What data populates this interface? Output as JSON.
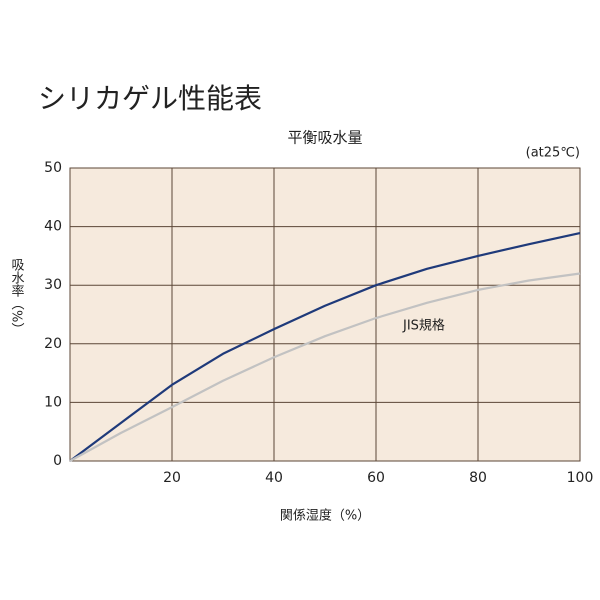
{
  "chart_data": {
    "type": "line",
    "title": "シリカゲル性能表",
    "subtitle": "平衡吸水量",
    "note": "(at25℃)",
    "x_label": "関係湿度（%）",
    "y_label": "吸水率（%）",
    "x": [
      0,
      10,
      20,
      30,
      40,
      50,
      60,
      70,
      80,
      90,
      100
    ],
    "series": [
      {
        "color": "#1f3a7a",
        "values": [
          0,
          6.5,
          13,
          18.3,
          22.5,
          26.5,
          30,
          32.8,
          35,
          37,
          38.9
        ]
      },
      {
        "name": "JIS規格",
        "color": "#c2c2c2",
        "values": [
          0,
          4.8,
          9.2,
          13.7,
          17.7,
          21.3,
          24.4,
          27,
          29.2,
          30.8,
          32
        ]
      }
    ],
    "xlim": [
      0,
      100
    ],
    "xticks": [
      20,
      40,
      60,
      80,
      100
    ],
    "ylim": [
      0,
      50
    ],
    "yticks": [
      0,
      10,
      20,
      30,
      40,
      50
    ],
    "grid": true,
    "background": "#f6eadd",
    "grid_color": "#5b4636"
  }
}
